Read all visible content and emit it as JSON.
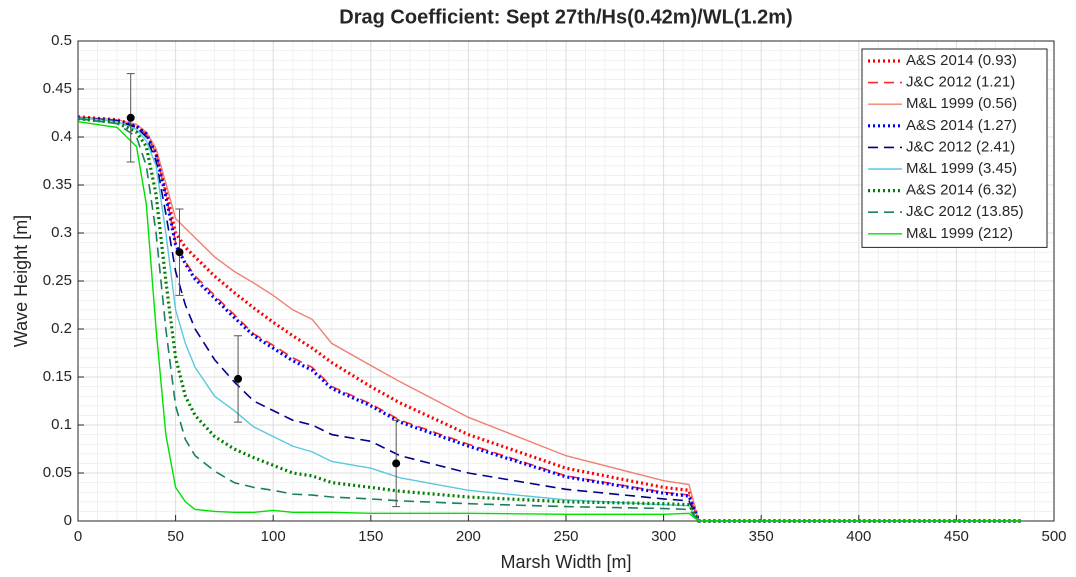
{
  "chart_data": {
    "type": "line",
    "title": "Drag Coefficient: Sept 27th/Hs(0.42m)/WL(1.2m)",
    "x_label": "Marsh Width [m]",
    "y_label": "Wave Height [m]",
    "x": [
      0,
      20,
      30,
      35,
      40,
      45,
      50,
      55,
      60,
      70,
      80,
      90,
      100,
      110,
      120,
      130,
      150,
      165,
      200,
      250,
      300,
      313,
      318,
      350,
      400,
      450,
      483
    ],
    "series": [
      {
        "name": "A&S 2014 (0.93)",
        "color": "#ff0000",
        "style": "dotted",
        "values": [
          0.421,
          0.418,
          0.412,
          0.404,
          0.385,
          0.345,
          0.3,
          0.285,
          0.275,
          0.255,
          0.238,
          0.222,
          0.207,
          0.193,
          0.18,
          0.165,
          0.14,
          0.123,
          0.09,
          0.055,
          0.035,
          0.032,
          0,
          0,
          0,
          0,
          0
        ]
      },
      {
        "name": "J&C 2012 (1.21)",
        "color": "#ff2a2a",
        "style": "dashed",
        "values": [
          0.42,
          0.417,
          0.411,
          0.403,
          0.383,
          0.34,
          0.29,
          0.27,
          0.255,
          0.235,
          0.215,
          0.195,
          0.183,
          0.17,
          0.16,
          0.14,
          0.122,
          0.105,
          0.08,
          0.047,
          0.03,
          0.027,
          0,
          0,
          0,
          0,
          0
        ]
      },
      {
        "name": "M&L 1999 (0.56)",
        "color": "#f08070",
        "style": "solid",
        "values": [
          0.421,
          0.418,
          0.413,
          0.405,
          0.388,
          0.352,
          0.315,
          0.305,
          0.295,
          0.275,
          0.26,
          0.248,
          0.235,
          0.22,
          0.21,
          0.185,
          0.162,
          0.145,
          0.108,
          0.068,
          0.042,
          0.038,
          0,
          0,
          0,
          0,
          0
        ]
      },
      {
        "name": "A&S 2014 (1.27)",
        "color": "#0000ff",
        "style": "dotted",
        "values": [
          0.42,
          0.417,
          0.411,
          0.403,
          0.382,
          0.338,
          0.288,
          0.268,
          0.252,
          0.232,
          0.212,
          0.193,
          0.18,
          0.167,
          0.157,
          0.138,
          0.12,
          0.103,
          0.078,
          0.046,
          0.029,
          0.026,
          0,
          0,
          0,
          0,
          0
        ]
      },
      {
        "name": "J&C 2012 (2.41)",
        "color": "#00008b",
        "style": "dashed",
        "values": [
          0.42,
          0.417,
          0.41,
          0.4,
          0.375,
          0.32,
          0.26,
          0.225,
          0.2,
          0.168,
          0.145,
          0.125,
          0.115,
          0.105,
          0.1,
          0.09,
          0.083,
          0.068,
          0.05,
          0.033,
          0.023,
          0.021,
          0,
          0,
          0,
          0,
          0
        ]
      },
      {
        "name": "M&L 1999 (3.45)",
        "color": "#5bc8e0",
        "style": "solid",
        "values": [
          0.42,
          0.416,
          0.408,
          0.396,
          0.37,
          0.3,
          0.22,
          0.185,
          0.16,
          0.13,
          0.115,
          0.098,
          0.088,
          0.078,
          0.072,
          0.062,
          0.055,
          0.045,
          0.032,
          0.022,
          0.017,
          0.016,
          0,
          0,
          0,
          0,
          0
        ]
      },
      {
        "name": "A&S 2014 (6.32)",
        "color": "#008000",
        "style": "dotted",
        "values": [
          0.419,
          0.415,
          0.405,
          0.39,
          0.34,
          0.25,
          0.17,
          0.13,
          0.11,
          0.088,
          0.075,
          0.066,
          0.058,
          0.05,
          0.047,
          0.04,
          0.035,
          0.031,
          0.025,
          0.02,
          0.018,
          0.017,
          0,
          0,
          0,
          0,
          0
        ]
      },
      {
        "name": "J&C 2012 (13.85)",
        "color": "#1a8060",
        "style": "dashed",
        "values": [
          0.419,
          0.414,
          0.4,
          0.37,
          0.3,
          0.2,
          0.12,
          0.085,
          0.068,
          0.052,
          0.04,
          0.035,
          0.032,
          0.028,
          0.027,
          0.025,
          0.023,
          0.021,
          0.018,
          0.015,
          0.013,
          0.012,
          0,
          0,
          0,
          0,
          0
        ]
      },
      {
        "name": "M&L 1999 (212)",
        "color": "#00e000",
        "style": "solid",
        "values": [
          0.416,
          0.41,
          0.39,
          0.33,
          0.2,
          0.09,
          0.035,
          0.02,
          0.012,
          0.01,
          0.009,
          0.009,
          0.011,
          0.009,
          0.009,
          0.009,
          0.008,
          0.008,
          0.008,
          0.007,
          0.007,
          0.008,
          0,
          0,
          0,
          0,
          0
        ]
      }
    ],
    "observations": {
      "color": "#000000",
      "x": [
        27,
        52,
        82,
        163
      ],
      "values": [
        0.42,
        0.28,
        0.148,
        0.06
      ],
      "errors": [
        0.046,
        0.045,
        0.045,
        0.045
      ]
    },
    "xlim": [
      0,
      500
    ],
    "xticks": [
      0,
      50,
      100,
      150,
      200,
      250,
      300,
      350,
      400,
      450,
      500
    ],
    "ylim": [
      0,
      0.5
    ],
    "yticks": [
      0,
      0.05,
      0.1,
      0.15,
      0.2,
      0.25,
      0.3,
      0.35,
      0.4,
      0.45,
      0.5
    ],
    "grid": true,
    "minor_grid": true,
    "legend": "upper right"
  }
}
